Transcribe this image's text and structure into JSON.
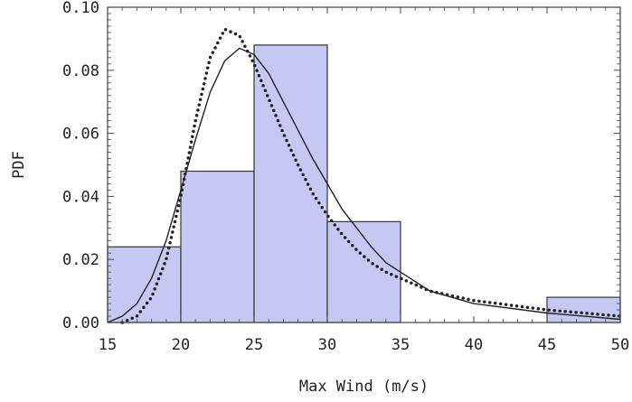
{
  "chart_data": {
    "type": "bar",
    "xlabel": "Max Wind (m/s)",
    "ylabel": "PDF",
    "xlim": [
      15,
      50
    ],
    "ylim": [
      0,
      0.1
    ],
    "x_ticks": [
      "15",
      "20",
      "25",
      "30",
      "35",
      "40",
      "45",
      "50"
    ],
    "y_ticks": [
      "0.00",
      "0.02",
      "0.04",
      "0.06",
      "0.08",
      "0.10"
    ],
    "histogram": [
      {
        "x0": 15,
        "x1": 20,
        "value": 0.024
      },
      {
        "x0": 20,
        "x1": 25,
        "value": 0.048
      },
      {
        "x0": 25,
        "x1": 30,
        "value": 0.088
      },
      {
        "x0": 30,
        "x1": 35,
        "value": 0.032
      },
      {
        "x0": 45,
        "x1": 50,
        "value": 0.008
      }
    ],
    "series": [
      {
        "style": "solid",
        "x": [
          15,
          16,
          17,
          18,
          19,
          20,
          21,
          22,
          23,
          24,
          25,
          26,
          27,
          28,
          29,
          30,
          31,
          32,
          33,
          34,
          35,
          37,
          40,
          45,
          50
        ],
        "y": [
          0.0,
          0.002,
          0.006,
          0.014,
          0.026,
          0.042,
          0.058,
          0.073,
          0.083,
          0.087,
          0.085,
          0.079,
          0.07,
          0.061,
          0.052,
          0.044,
          0.036,
          0.03,
          0.024,
          0.019,
          0.016,
          0.01,
          0.006,
          0.003,
          0.001
        ]
      },
      {
        "style": "dotted",
        "x": [
          16,
          17,
          18,
          19,
          20,
          21,
          22,
          23,
          24,
          25,
          26,
          27,
          28,
          29,
          30,
          31,
          32,
          33,
          34,
          35,
          37,
          40,
          45,
          50
        ],
        "y": [
          0.0,
          0.002,
          0.008,
          0.02,
          0.04,
          0.064,
          0.084,
          0.093,
          0.091,
          0.082,
          0.071,
          0.06,
          0.05,
          0.041,
          0.034,
          0.028,
          0.023,
          0.019,
          0.016,
          0.014,
          0.01,
          0.007,
          0.004,
          0.002
        ]
      }
    ],
    "colors": {
      "bar_fill": "#c5c8f2",
      "bar_stroke": "#333333",
      "curve": "#222222",
      "frame": "#444444"
    }
  }
}
